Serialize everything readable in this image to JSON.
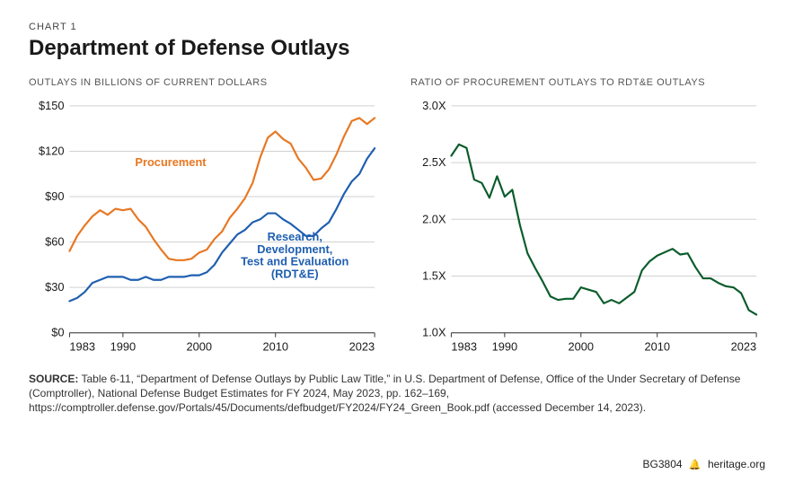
{
  "chart_label": "CHART 1",
  "title": "Department of Defense Outlays",
  "left_chart": {
    "type": "line",
    "subtitle": "OUTLAYS IN BILLIONS OF CURRENT DOLLARS",
    "x_years": [
      1983,
      1984,
      1985,
      1986,
      1987,
      1988,
      1989,
      1990,
      1991,
      1992,
      1993,
      1994,
      1995,
      1996,
      1997,
      1998,
      1999,
      2000,
      2001,
      2002,
      2003,
      2004,
      2005,
      2006,
      2007,
      2008,
      2009,
      2010,
      2011,
      2012,
      2013,
      2014,
      2015,
      2016,
      2017,
      2018,
      2019,
      2020,
      2021,
      2022,
      2023
    ],
    "procurement": {
      "label": "Procurement",
      "color": "#e87722",
      "values": [
        54,
        64,
        71,
        77,
        81,
        78,
        82,
        81,
        82,
        75,
        70,
        62,
        55,
        49,
        48,
        48,
        49,
        53,
        55,
        62,
        67,
        76,
        82,
        89,
        99,
        116,
        129,
        133,
        128,
        125,
        115,
        109,
        101,
        102,
        108,
        118,
        130,
        140,
        142,
        138,
        142
      ]
    },
    "rdte": {
      "label": "Research, Development, Test and Evaluation (RDT&E)",
      "color": "#1f5fb0",
      "values": [
        21,
        23,
        27,
        33,
        35,
        37,
        37,
        37,
        35,
        35,
        37,
        35,
        35,
        37,
        37,
        37,
        38,
        38,
        40,
        45,
        53,
        59,
        65,
        68,
        73,
        75,
        79,
        79,
        75,
        72,
        68,
        64,
        64,
        69,
        73,
        82,
        92,
        100,
        105,
        115,
        122
      ]
    },
    "ylim": [
      0,
      150
    ],
    "ytick_step": 30,
    "y_prefix": "$",
    "xticks": [
      1983,
      1990,
      2000,
      2010,
      2023
    ],
    "label_fontsize": 13,
    "tick_fontsize": 13,
    "grid_color": "#d0d0d0",
    "axis_color": "#333333",
    "line_width": 2.2
  },
  "right_chart": {
    "type": "line",
    "subtitle": "RATIO OF PROCUREMENT OUTLAYS TO RDT&E OUTLAYS",
    "x_years": [
      1983,
      1984,
      1985,
      1986,
      1987,
      1988,
      1989,
      1990,
      1991,
      1992,
      1993,
      1994,
      1995,
      1996,
      1997,
      1998,
      1999,
      2000,
      2001,
      2002,
      2003,
      2004,
      2005,
      2006,
      2007,
      2008,
      2009,
      2010,
      2011,
      2012,
      2013,
      2014,
      2015,
      2016,
      2017,
      2018,
      2019,
      2020,
      2021,
      2022,
      2023
    ],
    "ratio": {
      "color": "#0a5c2b",
      "values": [
        2.56,
        2.66,
        2.63,
        2.35,
        2.32,
        2.19,
        2.38,
        2.2,
        2.26,
        1.95,
        1.7,
        1.57,
        1.45,
        1.32,
        1.29,
        1.3,
        1.3,
        1.4,
        1.38,
        1.36,
        1.26,
        1.29,
        1.26,
        1.31,
        1.36,
        1.55,
        1.63,
        1.68,
        1.71,
        1.74,
        1.69,
        1.7,
        1.58,
        1.48,
        1.48,
        1.44,
        1.41,
        1.4,
        1.35,
        1.2,
        1.16
      ]
    },
    "ylim": [
      1.0,
      3.0
    ],
    "ytick_step": 0.5,
    "y_suffix": "X",
    "xticks": [
      1983,
      1990,
      2000,
      2010,
      2023
    ],
    "label_fontsize": 13,
    "tick_fontsize": 13,
    "grid_color": "#d0d0d0",
    "axis_color": "#333333",
    "line_width": 2.2
  },
  "source_prefix": "SOURCE:",
  "source_text": "Table 6-11, “Department of Defense Outlays by Public Law Title,” in U.S. Department of Defense, Office of the Under Secretary of Defense (Comptroller), National Defense Budget Estimates for FY 2024, May 2023, pp. 162–169, https://comptroller.defense.gov/Portals/45/Documents/defbudget/FY2024/FY24_Green_Book.pdf (accessed December 14, 2023).",
  "footer_id": "BG3804",
  "footer_site": "heritage.org"
}
